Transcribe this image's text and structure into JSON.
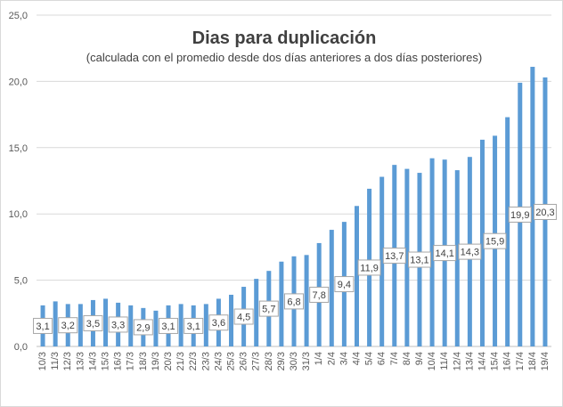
{
  "chart_data": {
    "type": "bar",
    "title": "Dias para duplicación",
    "subtitle": "(calculada con el promedio  desde dos días anteriores a dos días posteriores)",
    "xlabel": "",
    "ylabel": "",
    "ylim": [
      0,
      25
    ],
    "yticks": [
      "0,0",
      "5,0",
      "10,0",
      "15,0",
      "20,0",
      "25,0"
    ],
    "grid": "horizontal",
    "bar_color": "#5b9bd5",
    "categories": [
      "10/3",
      "11/3",
      "12/3",
      "13/3",
      "14/3",
      "15/3",
      "16/3",
      "17/3",
      "18/3",
      "19/3",
      "20/3",
      "21/3",
      "22/3",
      "23/3",
      "24/3",
      "25/3",
      "26/3",
      "27/3",
      "28/3",
      "29/3",
      "30/3",
      "31/3",
      "1/4",
      "2/4",
      "3/4",
      "4/4",
      "5/4",
      "6/4",
      "7/4",
      "8/4",
      "9/4",
      "10/4",
      "11/4",
      "12/4",
      "13/4",
      "14/4",
      "15/4",
      "16/4",
      "17/4",
      "18/4",
      "19/4"
    ],
    "values": [
      3.1,
      3.4,
      3.2,
      3.2,
      3.5,
      3.6,
      3.3,
      3.1,
      2.9,
      2.7,
      3.1,
      3.2,
      3.1,
      3.2,
      3.6,
      3.9,
      4.5,
      5.1,
      5.7,
      6.4,
      6.8,
      6.9,
      7.8,
      8.8,
      9.4,
      10.6,
      11.9,
      12.8,
      13.7,
      13.4,
      13.1,
      14.2,
      14.1,
      13.3,
      14.3,
      15.6,
      15.9,
      17.3,
      19.9,
      21.1,
      20.3
    ],
    "data_labels": [
      {
        "index": 0,
        "text": "3,1"
      },
      {
        "index": 2,
        "text": "3,2"
      },
      {
        "index": 4,
        "text": "3,5"
      },
      {
        "index": 6,
        "text": "3,3"
      },
      {
        "index": 8,
        "text": "2,9"
      },
      {
        "index": 10,
        "text": "3,1"
      },
      {
        "index": 12,
        "text": "3,1"
      },
      {
        "index": 14,
        "text": "3,6"
      },
      {
        "index": 16,
        "text": "4,5"
      },
      {
        "index": 18,
        "text": "5,7"
      },
      {
        "index": 20,
        "text": "6,8"
      },
      {
        "index": 22,
        "text": "7,8"
      },
      {
        "index": 24,
        "text": "9,4"
      },
      {
        "index": 26,
        "text": "11,9"
      },
      {
        "index": 28,
        "text": "13,7"
      },
      {
        "index": 30,
        "text": "13,1"
      },
      {
        "index": 32,
        "text": "14,1"
      },
      {
        "index": 34,
        "text": "14,3"
      },
      {
        "index": 36,
        "text": "15,9"
      },
      {
        "index": 38,
        "text": "19,9"
      },
      {
        "index": 40,
        "text": "20,3"
      }
    ]
  }
}
